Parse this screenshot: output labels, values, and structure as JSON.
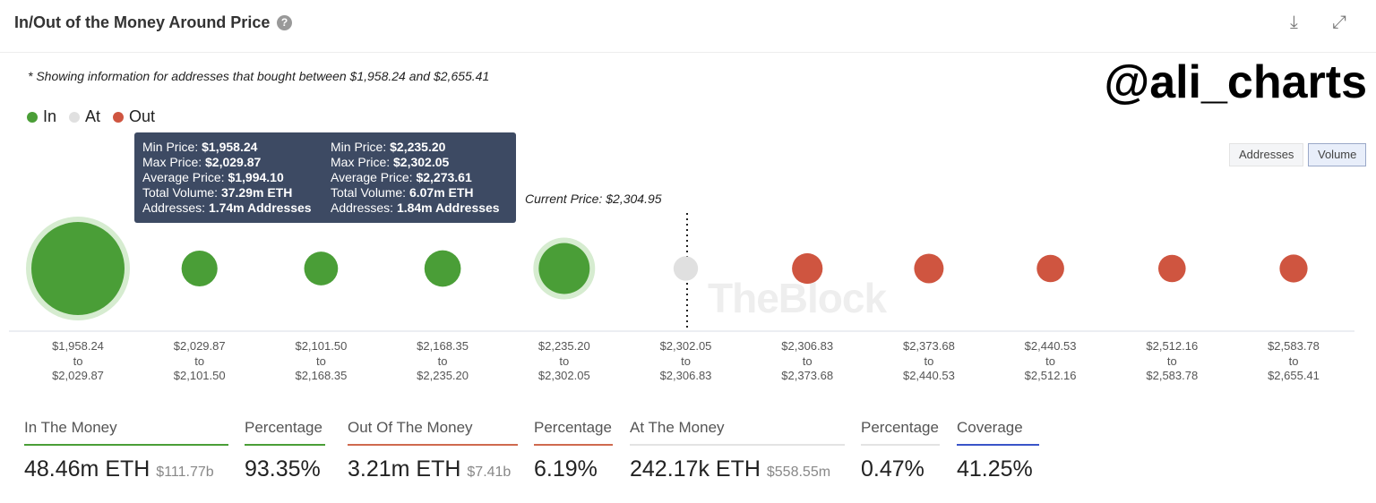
{
  "header": {
    "title": "In/Out of the Money Around Price",
    "help_icon": "question-circle-icon",
    "download_icon": "download-icon",
    "expand_icon": "expand-icon"
  },
  "note": "* Showing information for addresses that bought between $1,958.24 and $2,655.41",
  "brand": "@ali_charts",
  "watermark": "TheBlock",
  "toggle": {
    "addresses": "Addresses",
    "volume": "Volume",
    "selected": "Volume"
  },
  "colors": {
    "in": "#4a9e37",
    "at": "#e0e0e0",
    "out": "#cf5540",
    "coverage": "#3a55c8"
  },
  "chart_data": {
    "type": "scatter",
    "legend": [
      {
        "name": "In",
        "color": "#4a9e37"
      },
      {
        "name": "At",
        "color": "#e0e0e0"
      },
      {
        "name": "Out",
        "color": "#cf5540"
      }
    ],
    "legend_placement": "top-left",
    "current_price_label": "Current Price: $2,304.95",
    "clusters": [
      {
        "from": "$1,958.24",
        "to": "$2,029.87",
        "status": "in",
        "volume_m_eth": 37.29
      },
      {
        "from": "$2,029.87",
        "to": "$2,101.50",
        "status": "in",
        "volume_m_eth": 1.8
      },
      {
        "from": "$2,101.50",
        "to": "$2,168.35",
        "status": "in",
        "volume_m_eth": 1.4
      },
      {
        "from": "$2,168.35",
        "to": "$2,235.20",
        "status": "in",
        "volume_m_eth": 1.9
      },
      {
        "from": "$2,235.20",
        "to": "$2,302.05",
        "status": "in",
        "volume_m_eth": 6.07
      },
      {
        "from": "$2,302.05",
        "to": "$2,306.83",
        "status": "at",
        "volume_m_eth": 0.24
      },
      {
        "from": "$2,306.83",
        "to": "$2,373.68",
        "status": "out",
        "volume_m_eth": 0.9
      },
      {
        "from": "$2,373.68",
        "to": "$2,440.53",
        "status": "out",
        "volume_m_eth": 0.75
      },
      {
        "from": "$2,440.53",
        "to": "$2,512.16",
        "status": "out",
        "volume_m_eth": 0.5
      },
      {
        "from": "$2,512.16",
        "to": "$2,583.78",
        "status": "out",
        "volume_m_eth": 0.5
      },
      {
        "from": "$2,583.78",
        "to": "$2,655.41",
        "status": "out",
        "volume_m_eth": 0.56
      }
    ],
    "x_connector": "to",
    "tooltips": [
      {
        "min_label": "Min Price:",
        "min": "$1,958.24",
        "max_label": "Max Price:",
        "max": "$2,029.87",
        "avg_label": "Average Price:",
        "avg": "$1,994.10",
        "vol_label": "Total Volume:",
        "vol": "37.29m ETH",
        "addr_label": "Addresses:",
        "addr": "1.74m Addresses"
      },
      {
        "min_label": "Min Price:",
        "min": "$2,235.20",
        "max_label": "Max Price:",
        "max": "$2,302.05",
        "avg_label": "Average Price:",
        "avg": "$2,273.61",
        "vol_label": "Total Volume:",
        "vol": "6.07m ETH",
        "addr_label": "Addresses:",
        "addr": "1.84m Addresses"
      }
    ]
  },
  "stats": [
    {
      "label": "In The Money",
      "value": "48.46m ETH",
      "sub": "$111.77b",
      "color": "#4a9e37"
    },
    {
      "label": "Percentage",
      "value": "93.35%",
      "sub": "",
      "color": "#4a9e37"
    },
    {
      "label": "Out Of The Money",
      "value": "3.21m ETH",
      "sub": "$7.41b",
      "color": "#cf6a4f"
    },
    {
      "label": "Percentage",
      "value": "6.19%",
      "sub": "",
      "color": "#cf6a4f"
    },
    {
      "label": "At The Money",
      "value": "242.17k ETH",
      "sub": "$558.55m",
      "color": "#e3e3e3"
    },
    {
      "label": "Percentage",
      "value": "0.47%",
      "sub": "",
      "color": "#e3e3e3"
    },
    {
      "label": "Coverage",
      "value": "41.25%",
      "sub": "",
      "color": "#3a55c8"
    }
  ]
}
